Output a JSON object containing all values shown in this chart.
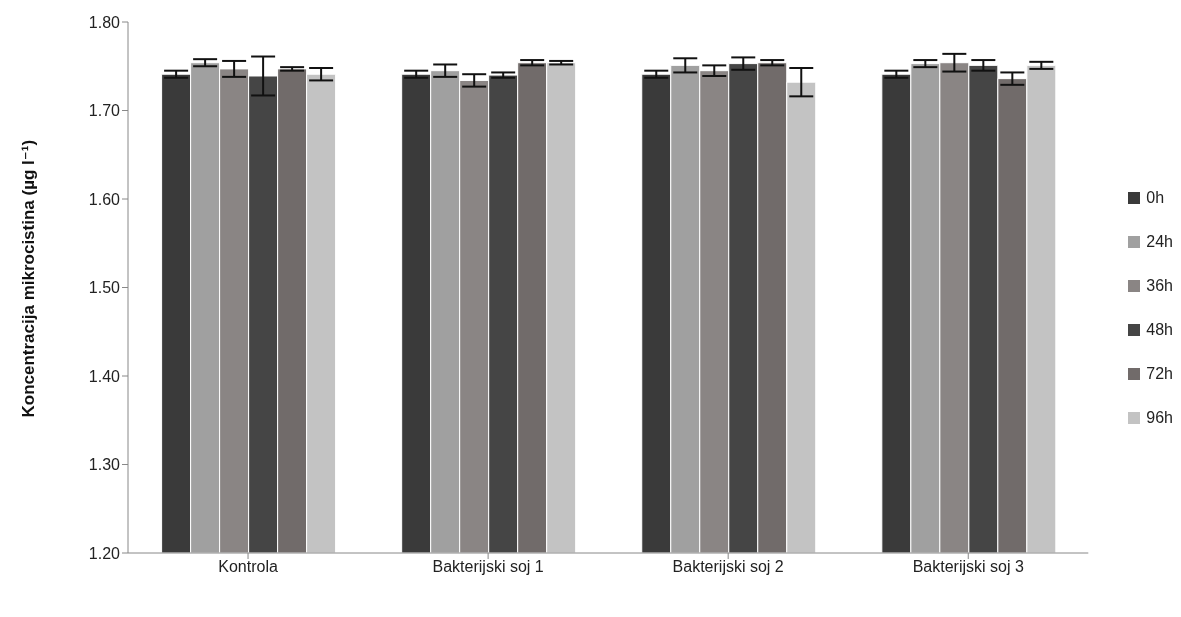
{
  "chart_data": {
    "type": "bar",
    "ylabel": "Koncentracija mikrocistina (µg l⁻¹)",
    "categories": [
      "Kontrola",
      "Bakterijski soj 1",
      "Bakterijski soj 2",
      "Bakterijski soj 3"
    ],
    "series": [
      {
        "name": "0h",
        "color": "#3a3a3a",
        "values": [
          1.741,
          1.741,
          1.741,
          1.741
        ],
        "errors": [
          0.004,
          0.004,
          0.004,
          0.004
        ]
      },
      {
        "name": "24h",
        "color": "#a0a0a0",
        "values": [
          1.754,
          1.745,
          1.751,
          1.753
        ],
        "errors": [
          0.004,
          0.007,
          0.008,
          0.004
        ]
      },
      {
        "name": "36h",
        "color": "#8a8584",
        "values": [
          1.747,
          1.734,
          1.745,
          1.754
        ],
        "errors": [
          0.009,
          0.007,
          0.006,
          0.01
        ]
      },
      {
        "name": "48h",
        "color": "#454545",
        "values": [
          1.739,
          1.74,
          1.753,
          1.751
        ],
        "errors": [
          0.022,
          0.003,
          0.007,
          0.006
        ]
      },
      {
        "name": "72h",
        "color": "#716b6a",
        "values": [
          1.747,
          1.754,
          1.754,
          1.736
        ],
        "errors": [
          0.002,
          0.003,
          0.003,
          0.007
        ]
      },
      {
        "name": "96h",
        "color": "#c3c3c3",
        "values": [
          1.741,
          1.754,
          1.732,
          1.751
        ],
        "errors": [
          0.007,
          0.002,
          0.016,
          0.004
        ]
      }
    ],
    "ylim": [
      1.2,
      1.8
    ],
    "yticks": [
      {
        "value": 1.2,
        "label": "1.20"
      },
      {
        "value": 1.3,
        "label": "1.30"
      },
      {
        "value": 1.4,
        "label": "1.40"
      },
      {
        "value": 1.5,
        "label": "1.50"
      },
      {
        "value": 1.6,
        "label": "1.60"
      },
      {
        "value": 1.7,
        "label": "1.70"
      },
      {
        "value": 1.8,
        "label": "1.80"
      }
    ],
    "grid": false,
    "legend": "right"
  }
}
